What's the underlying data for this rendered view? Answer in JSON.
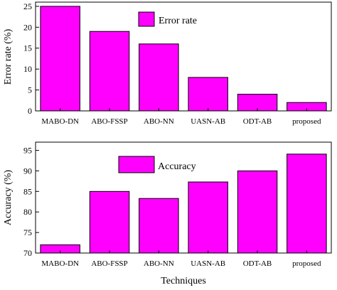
{
  "chart_data": [
    {
      "type": "bar",
      "categories": [
        "MABO-DN",
        "ABO-FSSP",
        "ABO-NN",
        "UASN-AB",
        "ODT-AB",
        "proposed"
      ],
      "series": [
        {
          "name": "Error rate",
          "values": [
            25,
            19,
            16,
            8,
            4,
            2
          ],
          "color": "#ff00ff"
        }
      ],
      "ylabel": "Error rate (%)",
      "xlabel": "",
      "ylim": [
        0,
        26
      ],
      "yticks": [
        0,
        5,
        10,
        15,
        20,
        25
      ],
      "legend": "top-center",
      "grid": false
    },
    {
      "type": "bar",
      "categories": [
        "MABO-DN",
        "ABO-FSSP",
        "ABO-NN",
        "UASN-AB",
        "ODT-AB",
        "proposed"
      ],
      "series": [
        {
          "name": "Accuracy",
          "values": [
            72,
            85,
            83.3,
            87.3,
            90,
            94.1
          ],
          "color": "#ff00ff"
        }
      ],
      "ylabel": "Accuracy (%)",
      "xlabel": "Techniques",
      "ylim": [
        70,
        97
      ],
      "yticks": [
        70,
        75,
        80,
        85,
        90,
        95
      ],
      "legend": "top-left",
      "grid": false
    }
  ]
}
